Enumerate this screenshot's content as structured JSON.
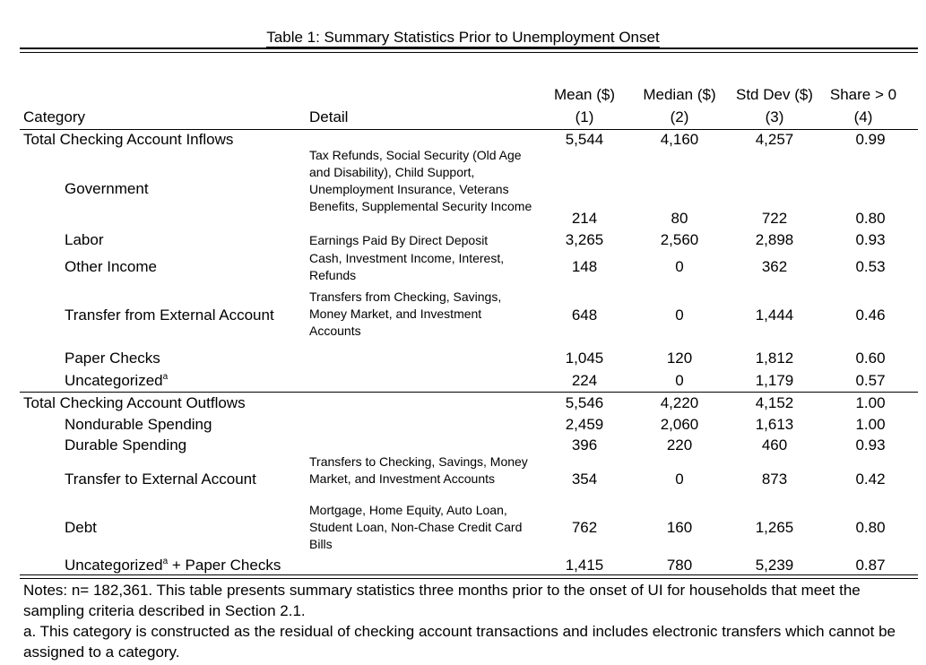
{
  "title": "Table 1: Summary Statistics Prior to Unemployment Onset",
  "header": {
    "category": "Category",
    "detail": "Detail",
    "cols": [
      {
        "label": "Mean ($)",
        "num": "(1)"
      },
      {
        "label": "Median ($)",
        "num": "(2)"
      },
      {
        "label": "Std Dev ($)",
        "num": "(3)"
      },
      {
        "label": "Share > 0",
        "num": "(4)"
      }
    ]
  },
  "rows": [
    {
      "category": "Total Checking Account Inflows",
      "detail": "",
      "values": [
        "5,544",
        "4,160",
        "4,257",
        "0.99"
      ]
    },
    {
      "category": "Government",
      "detail": "Tax Refunds, Social Security (Old Age and Disability), Child Support, Unemployment Insurance, Veterans Benefits, Supplemental Security Income",
      "values": [
        "214",
        "80",
        "722",
        "0.80"
      ]
    },
    {
      "category": "Labor",
      "detail": "Earnings Paid By Direct Deposit",
      "values": [
        "3,265",
        "2,560",
        "2,898",
        "0.93"
      ]
    },
    {
      "category": "Other Income",
      "detail": "Cash, Investment Income, Interest, Refunds",
      "values": [
        "148",
        "0",
        "362",
        "0.53"
      ]
    },
    {
      "category": "Transfer from External Account",
      "detail": "Transfers from Checking, Savings, Money Market, and Investment Accounts",
      "values": [
        "648",
        "0",
        "1,444",
        "0.46"
      ]
    },
    {
      "category": "Paper Checks",
      "detail": "",
      "values": [
        "1,045",
        "120",
        "1,812",
        "0.60"
      ]
    },
    {
      "category": "Uncategorized",
      "category_sup": "a",
      "detail": "",
      "values": [
        "224",
        "0",
        "1,179",
        "0.57"
      ]
    },
    {
      "category": "Total Checking Account Outflows",
      "detail": "",
      "values": [
        "5,546",
        "4,220",
        "4,152",
        "1.00"
      ]
    },
    {
      "category": "Nondurable Spending",
      "detail": "",
      "values": [
        "2,459",
        "2,060",
        "1,613",
        "1.00"
      ]
    },
    {
      "category": "Durable Spending",
      "detail": "",
      "values": [
        "396",
        "220",
        "460",
        "0.93"
      ]
    },
    {
      "category": "Transfer to External Account",
      "detail": "Transfers to Checking, Savings, Money Market, and Investment Accounts",
      "values": [
        "354",
        "0",
        "873",
        "0.42"
      ]
    },
    {
      "category": "Debt",
      "detail": "Mortgage, Home Equity, Auto Loan, Student Loan, Non-Chase Credit Card Bills",
      "values": [
        "762",
        "160",
        "1,265",
        "0.80"
      ]
    },
    {
      "category": "Uncategorized",
      "category_sup": "a",
      "category_suffix": " + Paper Checks",
      "detail": "",
      "values": [
        "1,415",
        "780",
        "5,239",
        "0.87"
      ]
    }
  ],
  "notes": {
    "main": "Notes: n= 182,361. This table presents summary statistics three months prior to the onset of UI for households that meet the sampling criteria described in Section 2.1.",
    "footnote": "a. This category is constructed as the residual of checking account transactions and includes electronic transfers which cannot be assigned to a category."
  }
}
